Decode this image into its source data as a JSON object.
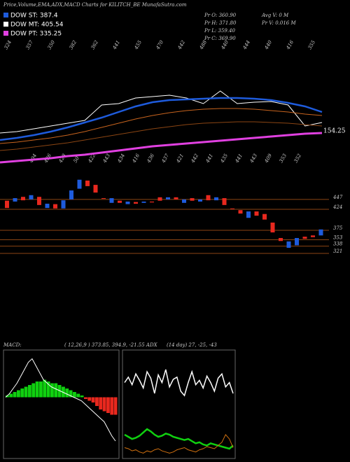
{
  "header": {
    "title": "Price,Volume,EMA,ADX,MACD Charts for KILITCH_BE MunafaSutra.com",
    "legend": [
      {
        "name": "DOW ST: 387.4",
        "color": "#1e5bdc"
      },
      {
        "name": "DOW MT: 405.54",
        "color": "#ffffff"
      },
      {
        "name": "DOW PT: 335.25",
        "color": "#e040e0"
      }
    ],
    "info": [
      "Pr  O: 360.90",
      "Pr  H: 371.80",
      "Pr  L: 359.40",
      "Pr  C: 369.90",
      "Avg  V: 0  M",
      "Pr  V: 0.016  M"
    ]
  },
  "chart_data": [
    {
      "type": "line",
      "ylim": [
        0,
        115
      ],
      "end_label": "154.25",
      "top_labels": [
        "324",
        "357",
        "350",
        "382",
        "362",
        "441",
        "455",
        "470",
        "442",
        "488",
        "440",
        "444",
        "440",
        "416",
        "355"
      ],
      "low_labels": [
        "404",
        "436",
        "428",
        "50",
        "422",
        "443",
        "434",
        "416",
        "436",
        "437",
        "421",
        "442",
        "441",
        "435",
        "441",
        "443",
        "409",
        "353",
        "352"
      ],
      "series": [
        {
          "name": "price",
          "color": "#ffffff",
          "values": [
            45,
            47,
            51,
            55,
            59,
            63,
            85,
            87,
            95,
            97,
            99,
            95,
            87,
            105,
            87,
            89,
            90,
            85,
            55,
            60
          ]
        },
        {
          "name": "ema-short",
          "color": "#1e5bdc",
          "values": [
            35,
            38,
            42,
            47,
            53,
            60,
            67,
            75,
            83,
            89,
            92,
            93,
            94,
            95,
            95,
            94,
            92,
            88,
            83,
            75
          ]
        },
        {
          "name": "ema-mid",
          "color": "#c8641e",
          "values": [
            30,
            32,
            35,
            38,
            42,
            47,
            53,
            59,
            65,
            70,
            74,
            77,
            79,
            80,
            80,
            79,
            77,
            75,
            72,
            70
          ]
        },
        {
          "name": "ema-long",
          "color": "#8b4513",
          "values": [
            20,
            22,
            25,
            28,
            31,
            35,
            39,
            43,
            47,
            51,
            54,
            57,
            59,
            60,
            61,
            61,
            60,
            59,
            57,
            55
          ]
        },
        {
          "name": "ema-pt",
          "color": "#e040e0",
          "values": [
            3,
            5,
            7,
            9,
            12,
            14,
            17,
            20,
            23,
            26,
            28,
            30,
            32,
            34,
            36,
            38,
            40,
            42,
            44,
            45
          ]
        }
      ]
    },
    {
      "type": "candlestick",
      "ylim": [
        308,
        504
      ],
      "yticks": [
        447,
        424,
        375,
        353,
        338,
        321
      ],
      "up_color": "#1e5bdc",
      "down_color": "#e8281e",
      "open": [
        444,
        442,
        453,
        447,
        453,
        427,
        436,
        426,
        447,
        472,
        491,
        481,
        450,
        439,
        444,
        436,
        441,
        439,
        442,
        452,
        447,
        452,
        439,
        450,
        442,
        457,
        445,
        450,
        426,
        422,
        404,
        419,
        413,
        393,
        357,
        334,
        340,
        360,
        363,
        363
      ],
      "close": [
        427,
        450,
        445,
        457,
        434,
        437,
        426,
        445,
        468,
        493,
        478,
        463,
        449,
        450,
        439,
        442,
        437,
        442,
        440,
        444,
        452,
        447,
        447,
        444,
        447,
        445,
        452,
        434,
        425,
        414,
        419,
        409,
        400,
        370,
        350,
        349,
        357,
        355,
        359,
        377
      ]
    },
    {
      "type": "macd",
      "label": "MACD:",
      "params": "( 12,26,9 ) 373.85, 394.9, -21.55 ADX",
      "ylim": [
        -35,
        27
      ],
      "histogram": [
        1,
        2,
        3,
        4,
        5,
        6,
        7,
        8,
        9,
        9,
        10,
        9,
        8,
        8,
        7,
        6,
        5,
        4,
        3,
        2,
        1,
        -1,
        -2,
        -3,
        -5,
        -7,
        -8,
        -9,
        -10,
        -10
      ],
      "macd": [
        0,
        2,
        5,
        8,
        12,
        16,
        20,
        22,
        18,
        14,
        10,
        8,
        6,
        5,
        4,
        3,
        2,
        1,
        0,
        -1,
        -2,
        -4,
        -6,
        -8,
        -10,
        -12,
        -14,
        -18,
        -22,
        -25
      ]
    },
    {
      "type": "adx",
      "params": "(14 day) 27, -25, -43",
      "ylim": [
        0,
        100
      ],
      "series": [
        {
          "name": "adx",
          "color": "#ffffff",
          "values": [
            70,
            75,
            68,
            78,
            72,
            65,
            80,
            74,
            60,
            77,
            70,
            82,
            66,
            73,
            75,
            62,
            58,
            70,
            80,
            68,
            72,
            65,
            76,
            70,
            62,
            74,
            78,
            66,
            70,
            60
          ]
        },
        {
          "name": "plus-di",
          "color": "#10d010",
          "values": [
            22,
            20,
            18,
            19,
            21,
            24,
            27,
            25,
            22,
            20,
            21,
            23,
            22,
            20,
            19,
            18,
            17,
            18,
            16,
            14,
            15,
            13,
            12,
            14,
            13,
            12,
            11,
            10,
            9,
            12
          ]
        },
        {
          "name": "minus-di",
          "color": "#d07010",
          "values": [
            10,
            9,
            7,
            8,
            6,
            5,
            7,
            6,
            8,
            9,
            7,
            6,
            5,
            6,
            8,
            9,
            10,
            8,
            7,
            6,
            8,
            9,
            11,
            10,
            9,
            12,
            15,
            22,
            18,
            10
          ]
        }
      ]
    }
  ]
}
